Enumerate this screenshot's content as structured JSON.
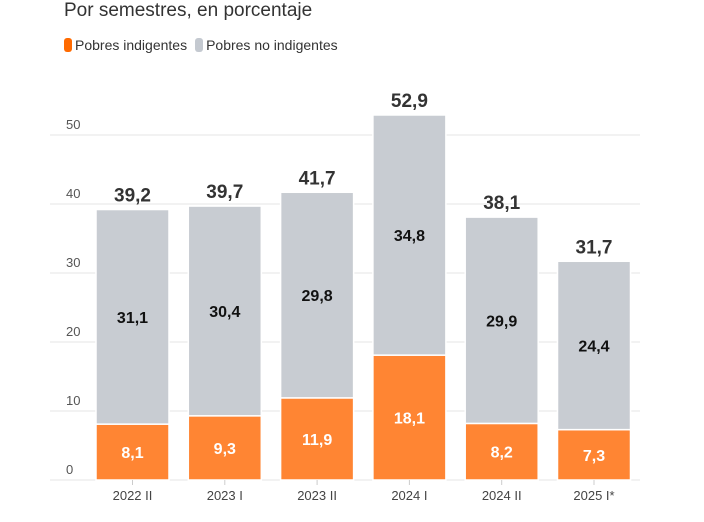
{
  "subtitle": "Por semestres, en porcentaje",
  "legend": [
    {
      "label": "Pobres indigentes",
      "color": "#ff6a00"
    },
    {
      "label": "Pobres no indigentes",
      "color": "#c4c9d0"
    }
  ],
  "chart_data": {
    "type": "bar",
    "stacked": true,
    "categories": [
      "2022 II",
      "2023 I",
      "2023 II",
      "2024 I",
      "2024 II",
      "2025 I*"
    ],
    "series": [
      {
        "name": "Pobres indigentes",
        "color": "#ff8533",
        "values": [
          8.1,
          9.3,
          11.9,
          18.1,
          8.2,
          7.3
        ],
        "labels": [
          "8,1",
          "9,3",
          "11,9",
          "18,1",
          "8,2",
          "7,3"
        ]
      },
      {
        "name": "Pobres no indigentes",
        "color": "#c8ccd2",
        "values": [
          31.1,
          30.4,
          29.8,
          34.8,
          29.9,
          24.4
        ],
        "labels": [
          "31,1",
          "30,4",
          "29,8",
          "34,8",
          "29,9",
          "24,4"
        ]
      }
    ],
    "totals": [
      "39,2",
      "39,7",
      "41,7",
      "52,9",
      "38,1",
      "31,7"
    ],
    "total_values": [
      39.2,
      39.7,
      41.7,
      52.9,
      38.1,
      31.7
    ],
    "yticks": [
      0,
      10,
      20,
      30,
      40,
      50
    ],
    "ylim": [
      0,
      50
    ],
    "grid": true
  }
}
